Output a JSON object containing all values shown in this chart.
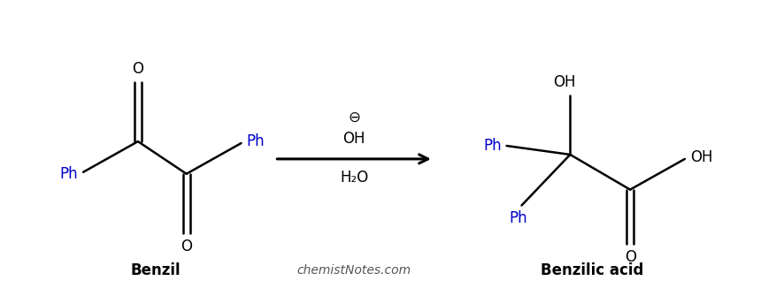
{
  "background_color": "#ffffff",
  "label_benzil": "Benzil",
  "label_benzilic": "Benzilic acid",
  "watermark": "chemistNotes.com",
  "ph_color": "#0000cc",
  "bond_color": "#000000",
  "text_color": "#000000",
  "figsize": [
    8.78,
    3.35
  ],
  "dpi": 100
}
